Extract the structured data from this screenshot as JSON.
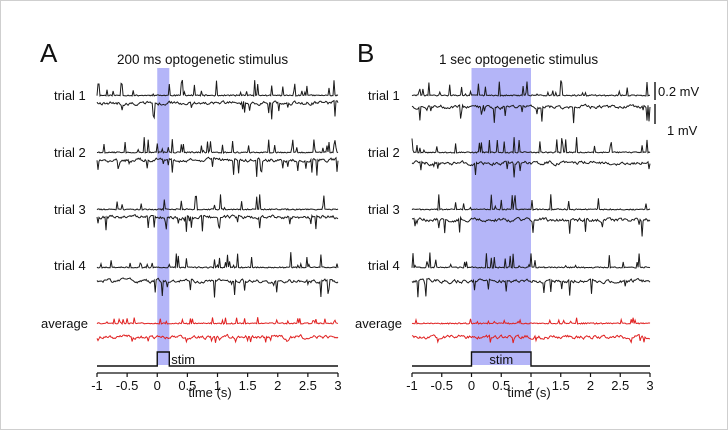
{
  "chart_data": [
    {
      "type": "line",
      "panel_letter": "A",
      "title": "200 ms optogenetic stimulus",
      "xlabel": "time (s)",
      "xlim": [
        -1,
        3
      ],
      "x_ticks": [
        "-1",
        "-0.5",
        "0",
        "0.5",
        "1",
        "1.5",
        "2",
        "2.5",
        "3"
      ],
      "stim_window": [
        0,
        0.2
      ],
      "stim_label": "stim",
      "trial_labels": [
        "trial 1",
        "trial 2",
        "trial 3",
        "trial 4"
      ],
      "average_label": "average",
      "seed": 11
    },
    {
      "type": "line",
      "panel_letter": "B",
      "title": "1 sec optogenetic stimulus",
      "xlabel": "time (s)",
      "xlim": [
        -1,
        3
      ],
      "x_ticks": [
        "-1",
        "-0.5",
        "0",
        "0.5",
        "1",
        "1.5",
        "2",
        "2.5",
        "3"
      ],
      "stim_window": [
        0,
        1
      ],
      "stim_label": "stim",
      "trial_labels": [
        "trial 1",
        "trial 2",
        "trial 3",
        "trial 4"
      ],
      "average_label": "average",
      "seed": 29
    }
  ],
  "scale_bars": {
    "top_label": "0.2 mV",
    "bottom_label": "1 mV"
  },
  "colors": {
    "trace": "#1a1a1a",
    "average": "#e02020",
    "stim_shade": "#9b9cf5"
  }
}
